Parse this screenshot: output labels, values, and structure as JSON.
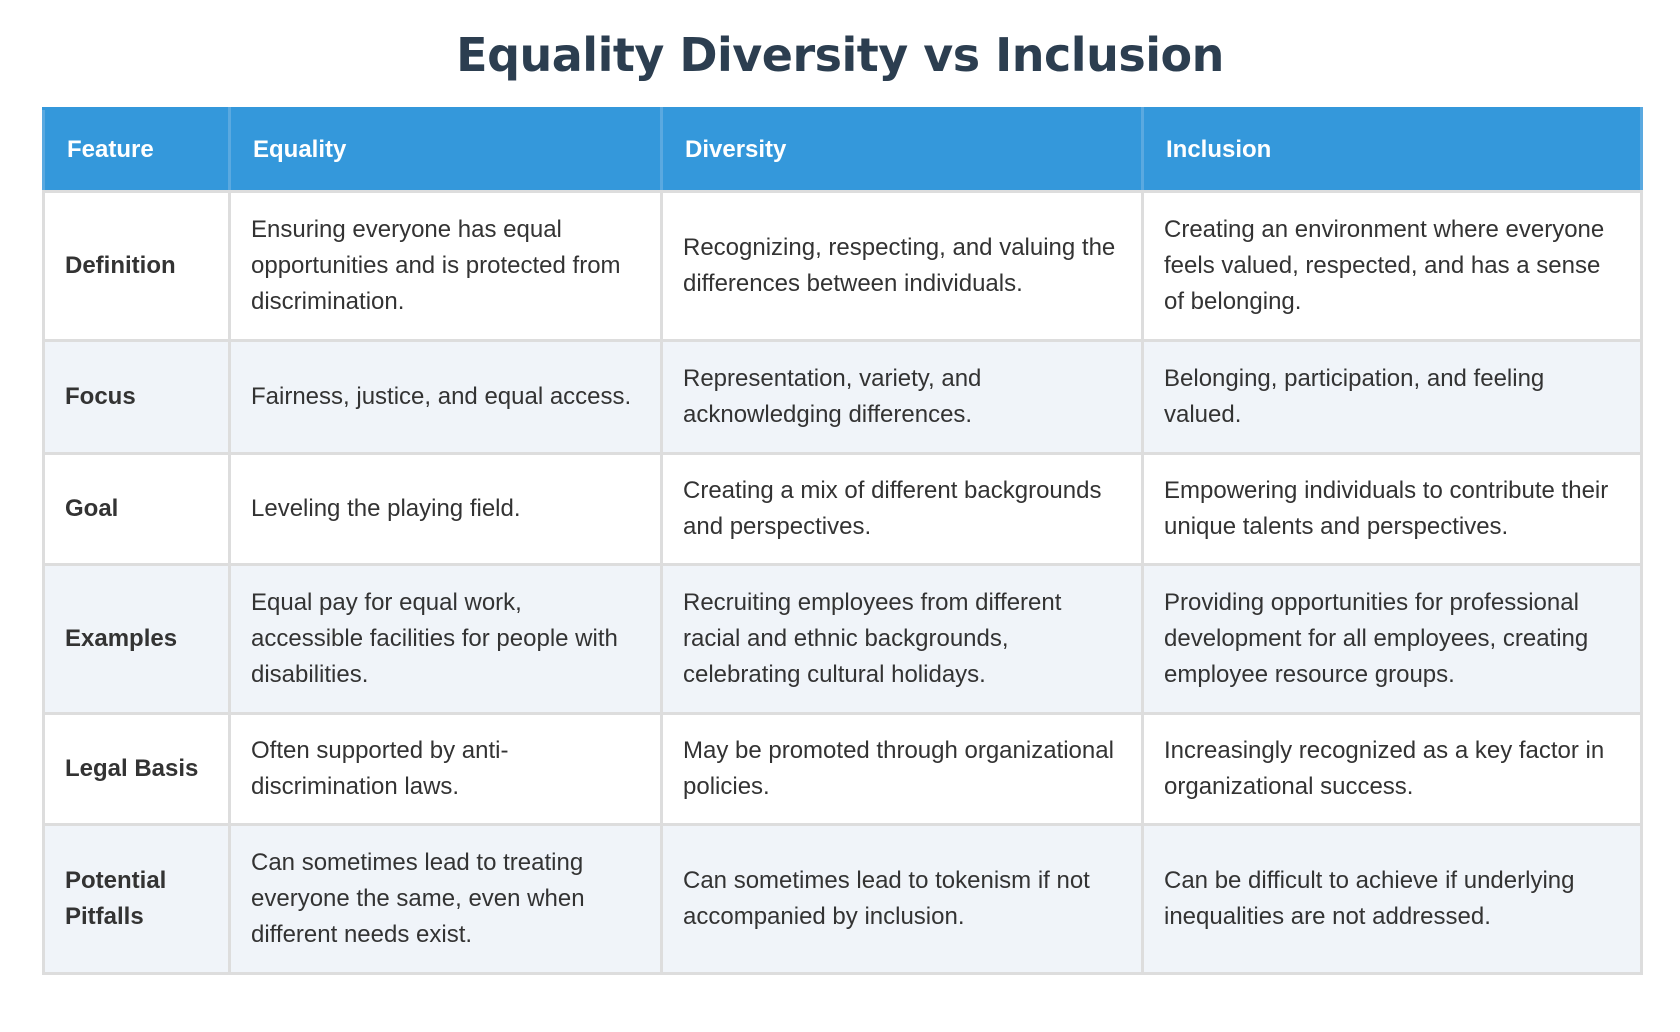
{
  "title": "Equality Diversity vs Inclusion",
  "table": {
    "headers": [
      "Feature",
      "Equality",
      "Diversity",
      "Inclusion"
    ],
    "rows": [
      {
        "feature": "Definition",
        "equality": "Ensuring everyone has equal opportunities and is protected from discrimination.",
        "diversity": "Recognizing, respecting, and valuing the differences between individuals.",
        "inclusion": "Creating an environment where everyone feels valued, respected, and has a sense of belonging."
      },
      {
        "feature": "Focus",
        "equality": "Fairness, justice, and equal access.",
        "diversity": "Representation, variety, and acknowledging differences.",
        "inclusion": "Belonging, participation, and feeling valued."
      },
      {
        "feature": "Goal",
        "equality": "Leveling the playing field.",
        "diversity": "Creating a mix of different backgrounds and perspectives.",
        "inclusion": "Empowering individuals to contribute their unique talents and perspectives."
      },
      {
        "feature": "Examples",
        "equality": "Equal pay for equal work, accessible facilities for people with disabilities.",
        "diversity": "Recruiting employees from different racial and ethnic backgrounds, celebrating cultural holidays.",
        "inclusion": "Providing opportunities for professional development for all employees, creating employee resource groups."
      },
      {
        "feature": "Legal Basis",
        "equality": "Often supported by anti-discrimination laws.",
        "diversity": "May be promoted through organizational policies.",
        "inclusion": "Increasingly recognized as a key factor in organizational success."
      },
      {
        "feature": "Potential Pitfalls",
        "equality": "Can sometimes lead to treating everyone the same, even when different needs exist.",
        "diversity": "Can sometimes lead to tokenism if not accompanied by inclusion.",
        "inclusion": "Can be difficult to achieve if underlying inequalities are not addressed."
      }
    ]
  }
}
